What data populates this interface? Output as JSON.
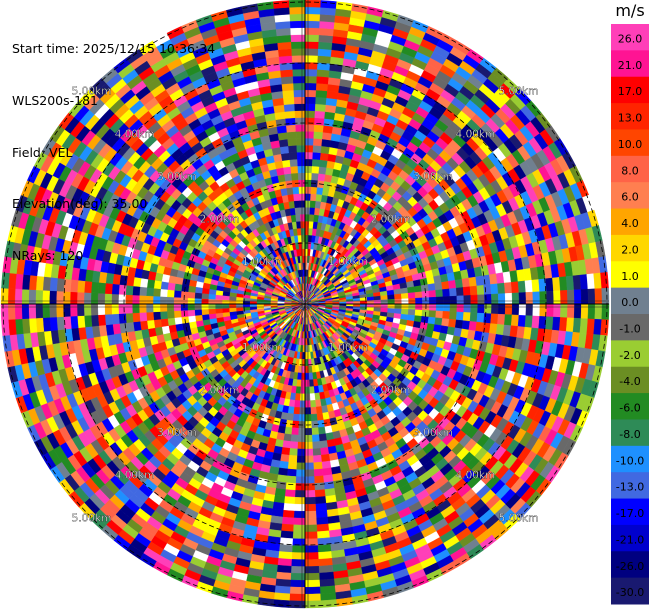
{
  "info": {
    "start_time": "Start time: 2025/12/15 10:36:34",
    "site": "WLS200s-181",
    "field": "Field: VEL",
    "elevation": "Elevation(deg): 35.00",
    "nrays": "NRays: 120"
  },
  "colorbar": {
    "unit": "m/s",
    "ticks": [
      "26.0",
      "21.0",
      "17.0",
      "13.0",
      "10.0",
      "8.0",
      "6.0",
      "4.0",
      "2.0",
      "1.0",
      "0.0",
      "-1.0",
      "-2.0",
      "-4.0",
      "-6.0",
      "-8.0",
      "-10.0",
      "-13.0",
      "-17.0",
      "-21.0",
      "-26.0",
      "-30.0"
    ],
    "colors": [
      "#ff3fb8",
      "#ff1493",
      "#ff0000",
      "#ff2400",
      "#ff4500",
      "#ff6347",
      "#ff7f50",
      "#ffa500",
      "#ffd700",
      "#ffff00",
      "#708090",
      "#696969",
      "#9acd32",
      "#6b8e23",
      "#228b22",
      "#2e8b57",
      "#1e90ff",
      "#4169e1",
      "#0000ff",
      "#0000cd",
      "#000080",
      "#191970"
    ]
  },
  "chart_data": {
    "type": "heatmap",
    "projection": "polar-ppi",
    "field": "VEL",
    "rays": 120,
    "elevation_deg": 35.0,
    "range_ring_labels": [
      "1.00km",
      "2.00km",
      "3.00km",
      "4.00km",
      "5.00km"
    ],
    "range_rings_km": [
      1,
      2,
      3,
      4,
      5
    ],
    "max_range_km": 5,
    "value_range": [
      -30,
      26
    ],
    "data_note_visible": false
  }
}
